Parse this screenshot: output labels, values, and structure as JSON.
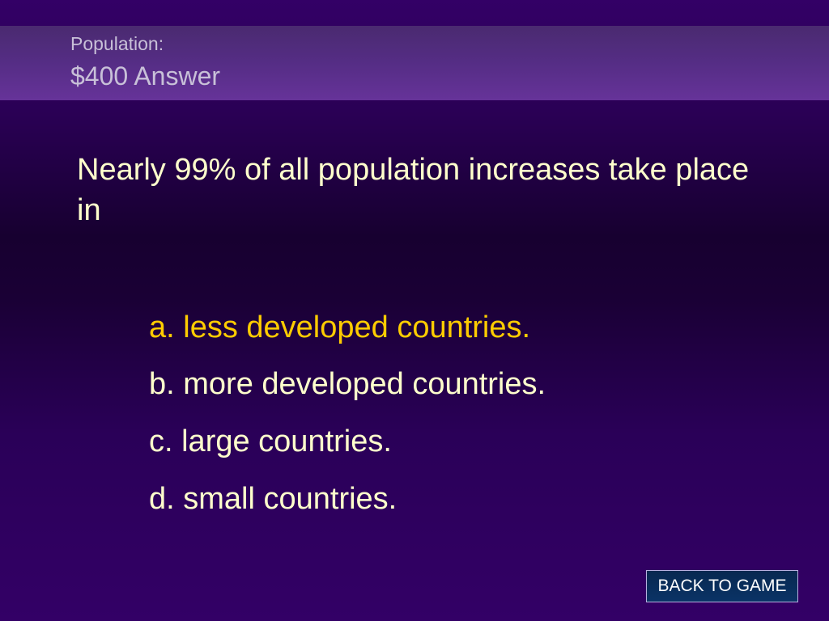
{
  "header": {
    "category": "Population:",
    "title": "$400 Answer"
  },
  "question": "Nearly 99% of all population increases take place in",
  "options": [
    {
      "label": "a. less developed countries.",
      "correct": true
    },
    {
      "label": "b. more developed countries.",
      "correct": false
    },
    {
      "label": "c. large countries.",
      "correct": false
    },
    {
      "label": "d. small countries.",
      "correct": false
    }
  ],
  "back_button": {
    "label": "BACK TO GAME"
  },
  "colors": {
    "background": "#330066",
    "text": "#ffffcc",
    "correct_answer": "#ffcc00",
    "button": "#0a3366"
  }
}
